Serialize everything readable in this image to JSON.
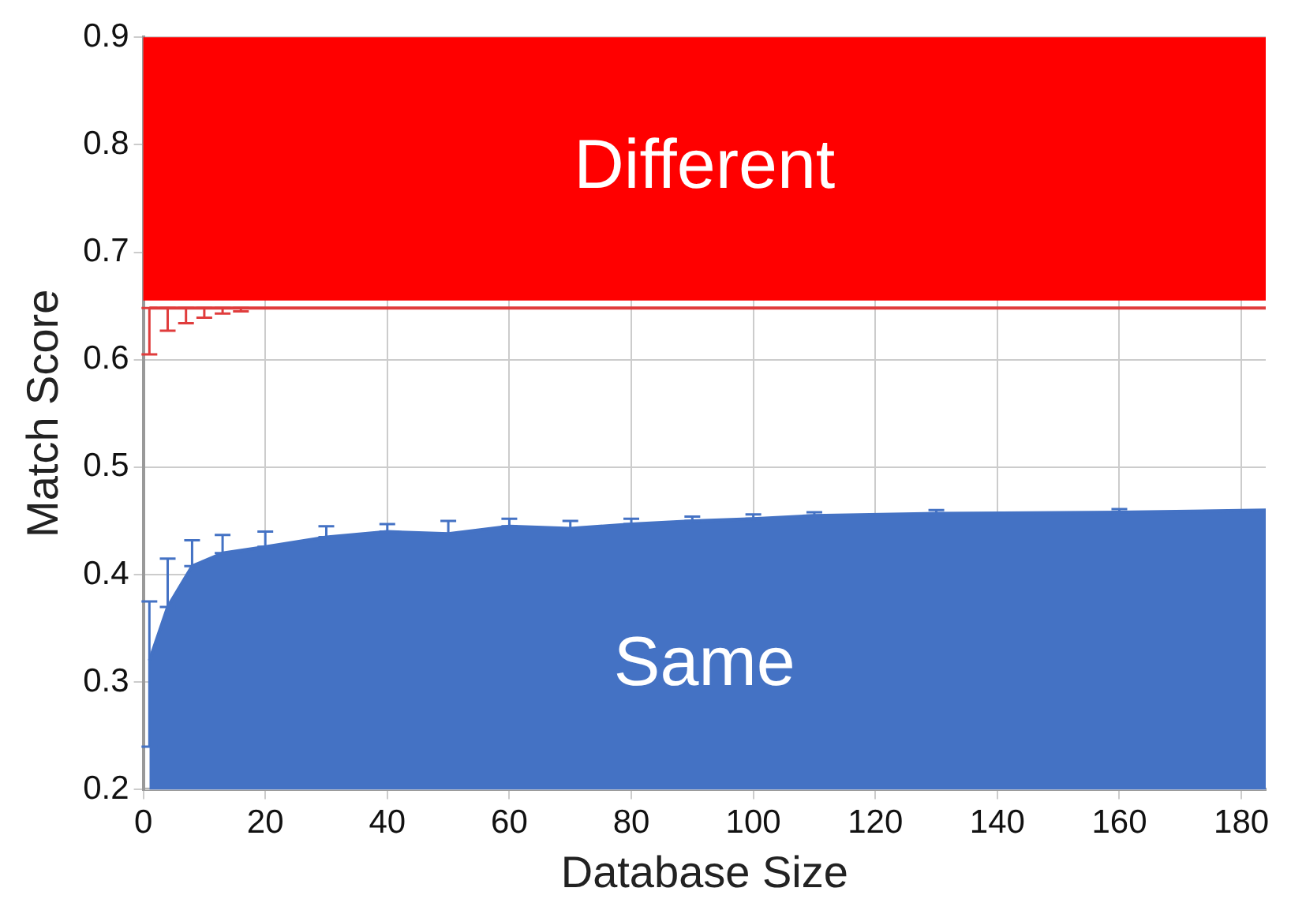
{
  "chart_data": {
    "type": "area",
    "xlabel": "Database Size",
    "ylabel": "Match Score",
    "xlim": [
      0,
      184
    ],
    "xticks": [
      0,
      20,
      40,
      60,
      80,
      100,
      120,
      140,
      160,
      180
    ],
    "ylim": [
      0.2,
      0.9
    ],
    "yticks": [
      0.2,
      0.3,
      0.4,
      0.5,
      0.6,
      0.7,
      0.8,
      0.9
    ],
    "grid": true,
    "legend": false,
    "bands": [
      {
        "axis": "y",
        "from": 0.655,
        "to": 0.9,
        "label": "Different",
        "color": "#ff0000"
      }
    ],
    "series": [
      {
        "type": "line",
        "color": "#e03c3c",
        "x": [
          1,
          4,
          7,
          10,
          13,
          16,
          20,
          25,
          30,
          40,
          60,
          80,
          100,
          120,
          140,
          160,
          184
        ],
        "values": [
          0.648,
          0.648,
          0.648,
          0.648,
          0.648,
          0.648,
          0.648,
          0.648,
          0.648,
          0.648,
          0.648,
          0.648,
          0.648,
          0.648,
          0.648,
          0.648,
          0.648
        ],
        "errors": [
          [
            0.605,
            0.648
          ],
          [
            0.627,
            0.648
          ],
          [
            0.634,
            0.648
          ],
          [
            0.639,
            0.648
          ],
          [
            0.643,
            0.648
          ],
          [
            0.645,
            0.648
          ],
          null,
          null,
          null,
          null,
          null,
          null,
          null,
          null,
          null,
          null,
          null
        ]
      },
      {
        "name": "Same",
        "color": "#4472c4",
        "x": [
          1,
          4,
          8,
          13,
          20,
          30,
          40,
          50,
          60,
          70,
          80,
          90,
          100,
          110,
          130,
          160,
          184
        ],
        "values": [
          0.32,
          0.37,
          0.408,
          0.42,
          0.426,
          0.435,
          0.44,
          0.438,
          0.445,
          0.443,
          0.447,
          0.45,
          0.452,
          0.455,
          0.457,
          0.458,
          0.46
        ],
        "errors": [
          [
            0.24,
            0.375
          ],
          [
            0.37,
            0.415
          ],
          [
            0.408,
            0.432
          ],
          [
            0.42,
            0.437
          ],
          [
            0.426,
            0.44
          ],
          [
            0.435,
            0.445
          ],
          [
            0.44,
            0.447
          ],
          [
            0.438,
            0.45
          ],
          [
            0.445,
            0.452
          ],
          [
            0.443,
            0.45
          ],
          [
            0.447,
            0.452
          ],
          [
            0.45,
            0.454
          ],
          [
            0.452,
            0.456
          ],
          [
            0.455,
            0.458
          ],
          [
            0.457,
            0.46
          ],
          [
            0.458,
            0.461
          ],
          null
        ]
      }
    ]
  }
}
